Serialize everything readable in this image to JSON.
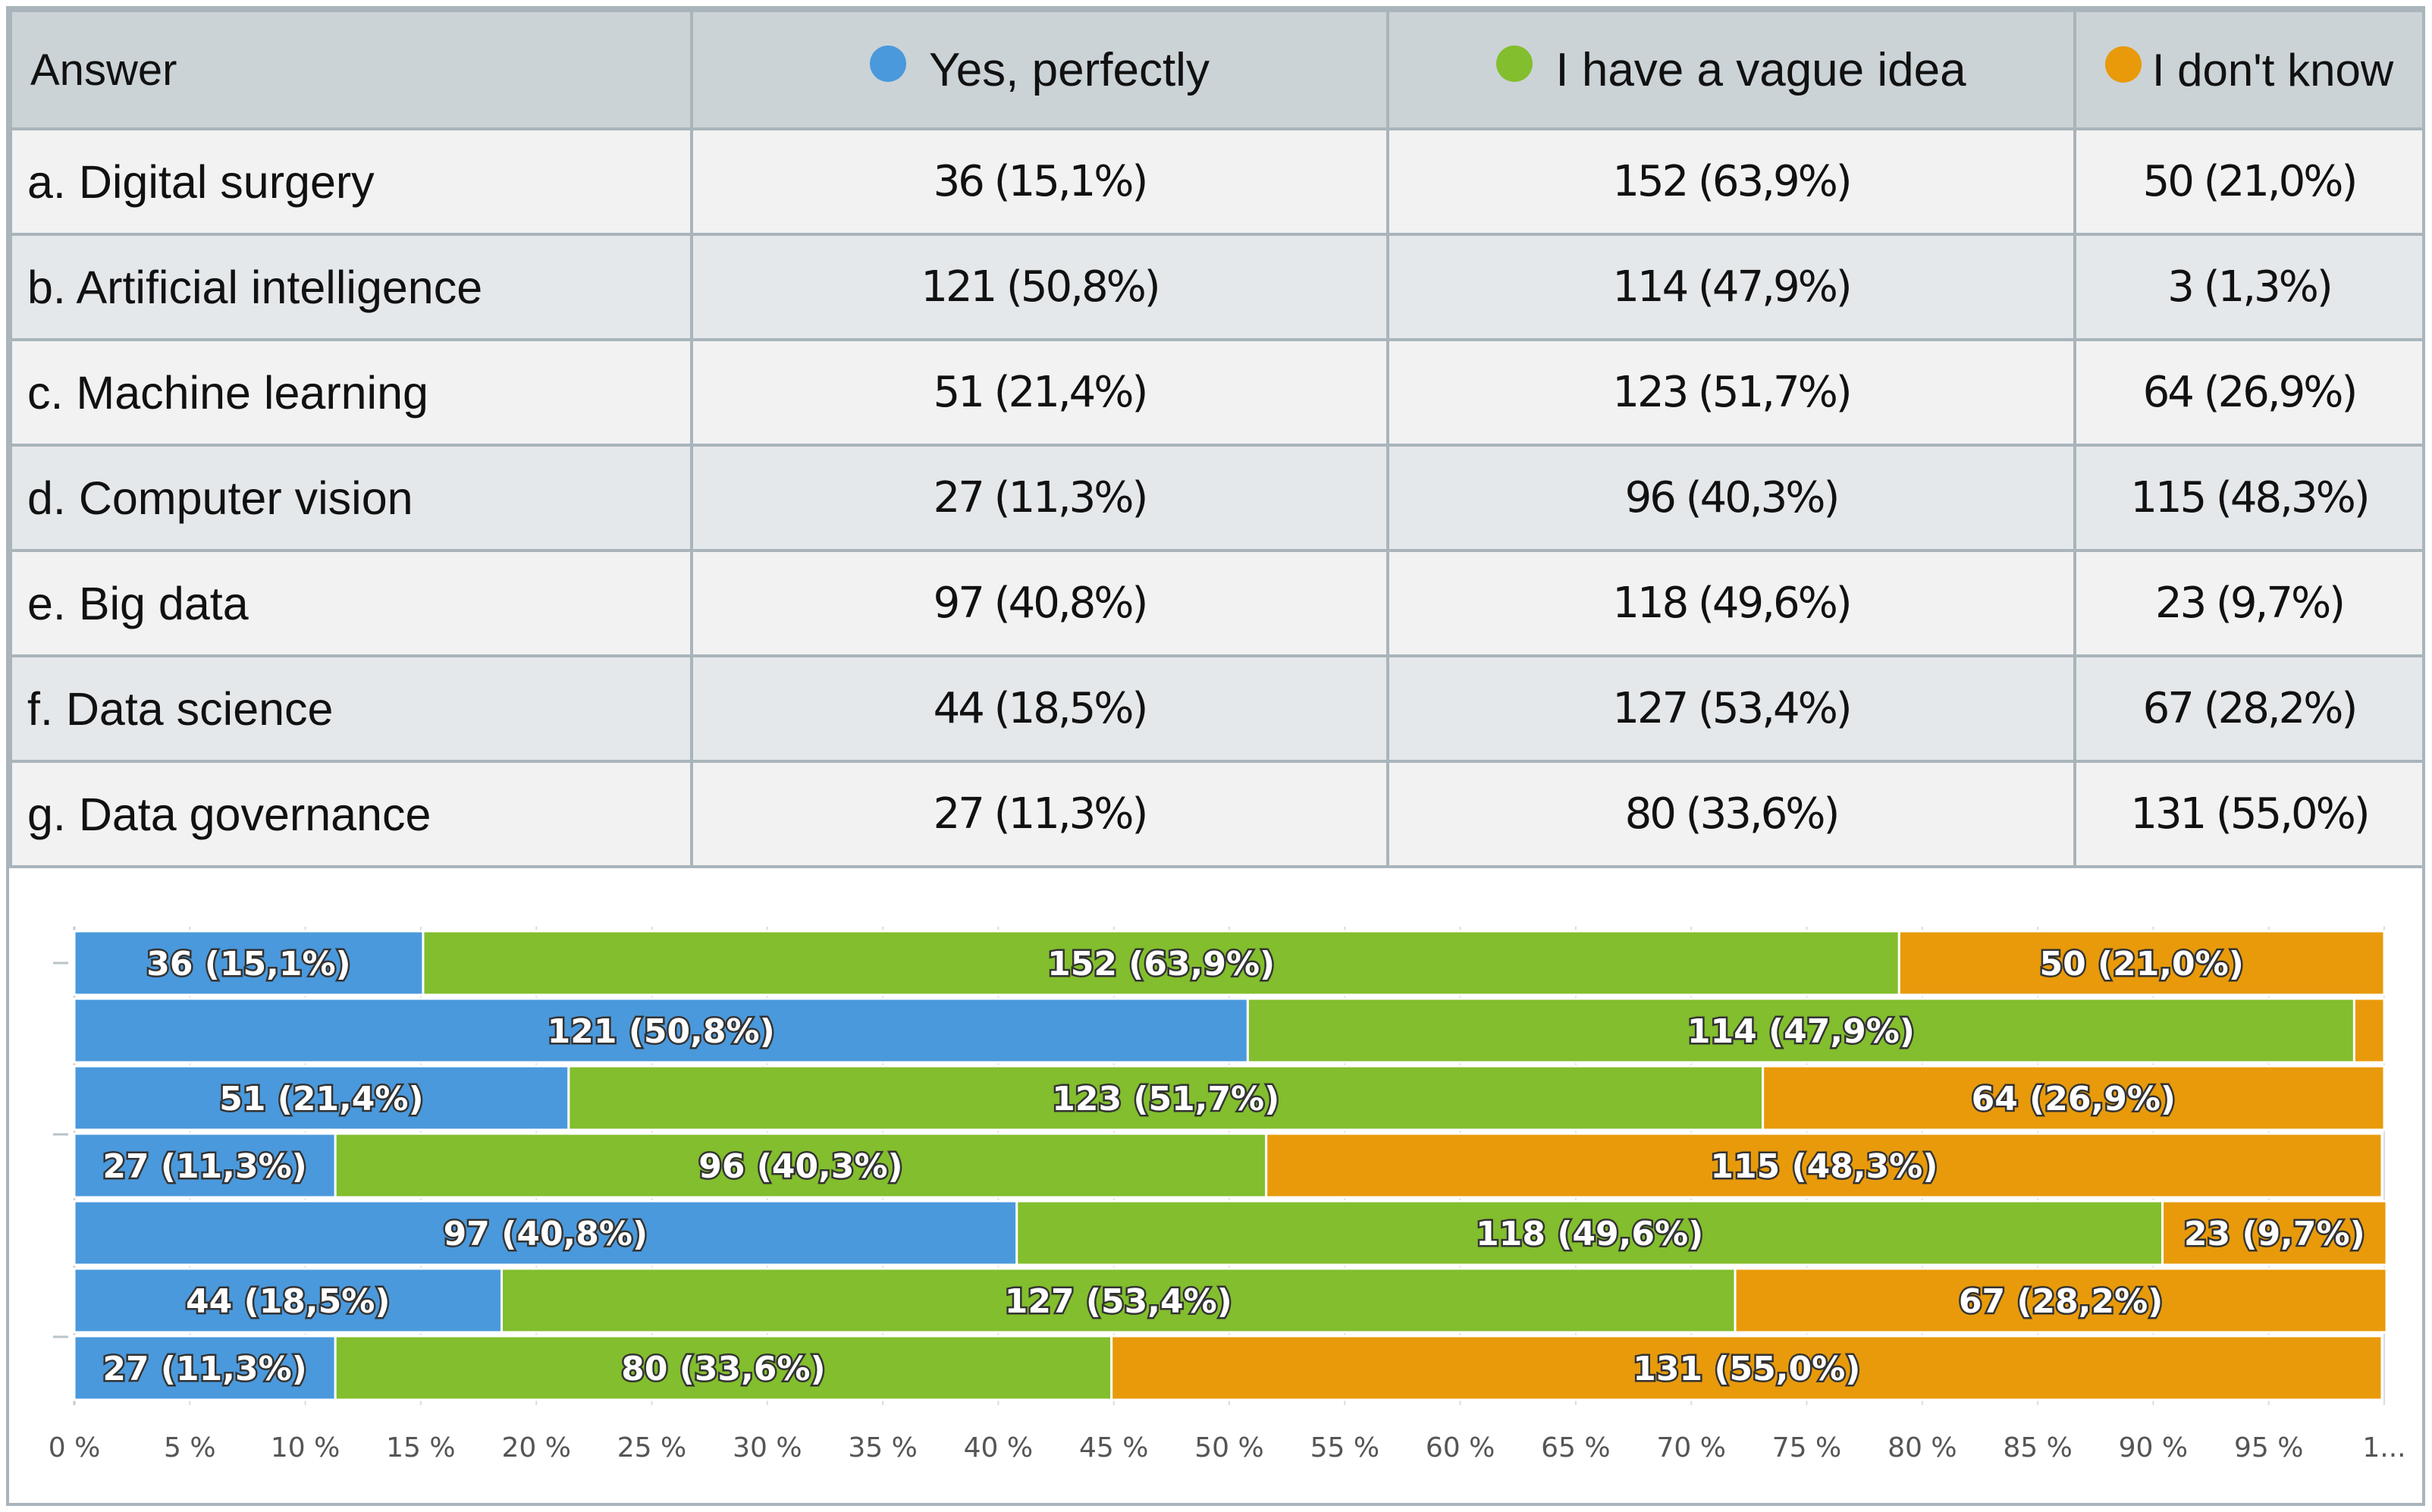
{
  "table": {
    "header": {
      "answer": "Answer",
      "col1": "Yes, perfectly",
      "col2": "I have a vague idea",
      "col3": "I don't know"
    },
    "rows": [
      {
        "label": "a. Digital surgery",
        "yes": "36 (15,1%)",
        "vague": "152 (63,9%)",
        "dontknow": "50 (21,0%)"
      },
      {
        "label": "b. Artificial intelligence",
        "yes": "121 (50,8%)",
        "vague": "114 (47,9%)",
        "dontknow": "3 (1,3%)"
      },
      {
        "label": "c. Machine learning",
        "yes": "51 (21,4%)",
        "vague": "123 (51,7%)",
        "dontknow": "64 (26,9%)"
      },
      {
        "label": "d. Computer vision",
        "yes": "27 (11,3%)",
        "vague": "96 (40,3%)",
        "dontknow": "115 (48,3%)"
      },
      {
        "label": "e. Big data",
        "yes": "97 (40,8%)",
        "vague": "118 (49,6%)",
        "dontknow": "23 (9,7%)"
      },
      {
        "label": "f. Data science",
        "yes": "44 (18,5%)",
        "vague": "127 (53,4%)",
        "dontknow": "67 (28,2%)"
      },
      {
        "label": "g. Data governance",
        "yes": "27 (11,3%)",
        "vague": "80 (33,6%)",
        "dontknow": "131 (55,0%)"
      }
    ]
  },
  "colors": {
    "yes": "#4a99dc",
    "vague": "#82be2d",
    "dontknow": "#e89a0a"
  },
  "chart_data": {
    "type": "bar",
    "stacked": true,
    "orientation": "horizontal",
    "categories": [
      "a. Digital surgery",
      "b. Artificial intelligence",
      "c. Machine learning",
      "d. Computer vision",
      "e. Big data",
      "f. Data science",
      "g. Data governance"
    ],
    "series": [
      {
        "name": "Yes, perfectly",
        "color": "#4a99dc",
        "values": [
          15.1,
          50.8,
          21.4,
          11.3,
          40.8,
          18.5,
          11.3
        ],
        "labels": [
          "36 (15,1%)",
          "121 (50,8%)",
          "51 (21,4%)",
          "27 (11,3%)",
          "97 (40,8%)",
          "44 (18,5%)",
          "27 (11,3%)"
        ]
      },
      {
        "name": "I have a vague idea",
        "color": "#82be2d",
        "values": [
          63.9,
          47.9,
          51.7,
          40.3,
          49.6,
          53.4,
          33.6
        ],
        "labels": [
          "152 (63,9%)",
          "114 (47,9%)",
          "123 (51,7%)",
          "96 (40,3%)",
          "118 (49,6%)",
          "127 (53,4%)",
          "80 (33,6%)"
        ]
      },
      {
        "name": "I don't know",
        "color": "#e89a0a",
        "values": [
          21.0,
          1.3,
          26.9,
          48.3,
          9.7,
          28.2,
          55.0
        ],
        "labels": [
          "50 (21,0%)",
          "",
          "64 (26,9%)",
          "115 (48,3%)",
          "23 (9,7%)",
          "67 (28,2%)",
          "131 (55,0%)"
        ]
      }
    ],
    "xticks": [
      "0 %",
      "5 %",
      "10 %",
      "15 %",
      "20 %",
      "25 %",
      "30 %",
      "35 %",
      "40 %",
      "45 %",
      "50 %",
      "55 %",
      "60 %",
      "65 %",
      "70 %",
      "75 %",
      "80 %",
      "85 %",
      "90 %",
      "95 %",
      "1..."
    ],
    "xlim": [
      0,
      100
    ],
    "grid": true,
    "legend": "table header"
  }
}
